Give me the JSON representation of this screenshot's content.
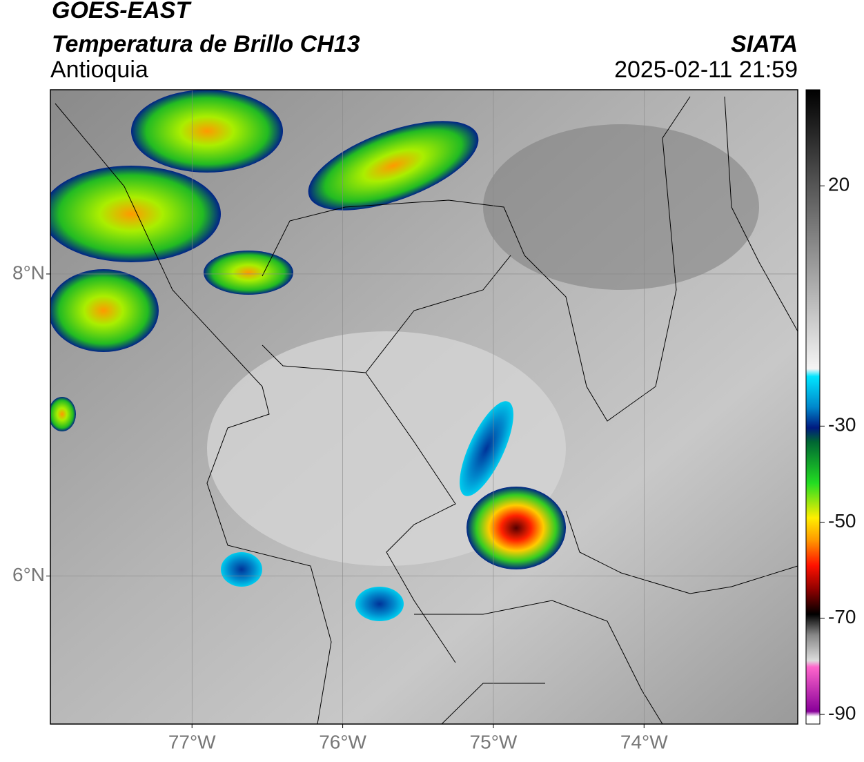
{
  "header": {
    "title": "GOES-EAST",
    "subtitle": "Temperatura de Brillo CH13",
    "region": "Antioquia",
    "source": "SIATA",
    "datetime": "2025-02-11 21:59"
  },
  "map": {
    "lon_range": [
      -77.94,
      -72.98
    ],
    "lat_range": [
      5.02,
      9.22
    ],
    "lon_ticks": [
      {
        "value": -77,
        "label": "77°W"
      },
      {
        "value": -76,
        "label": "76°W"
      },
      {
        "value": -75,
        "label": "75°W"
      },
      {
        "value": -74,
        "label": "74°W"
      }
    ],
    "lat_ticks": [
      {
        "value": 8,
        "label": "8°N"
      },
      {
        "value": 6,
        "label": "6°N"
      }
    ],
    "grid": true
  },
  "colorbar": {
    "range": [
      40,
      -92
    ],
    "ticks": [
      20,
      -30,
      -50,
      -70,
      -90
    ]
  }
}
